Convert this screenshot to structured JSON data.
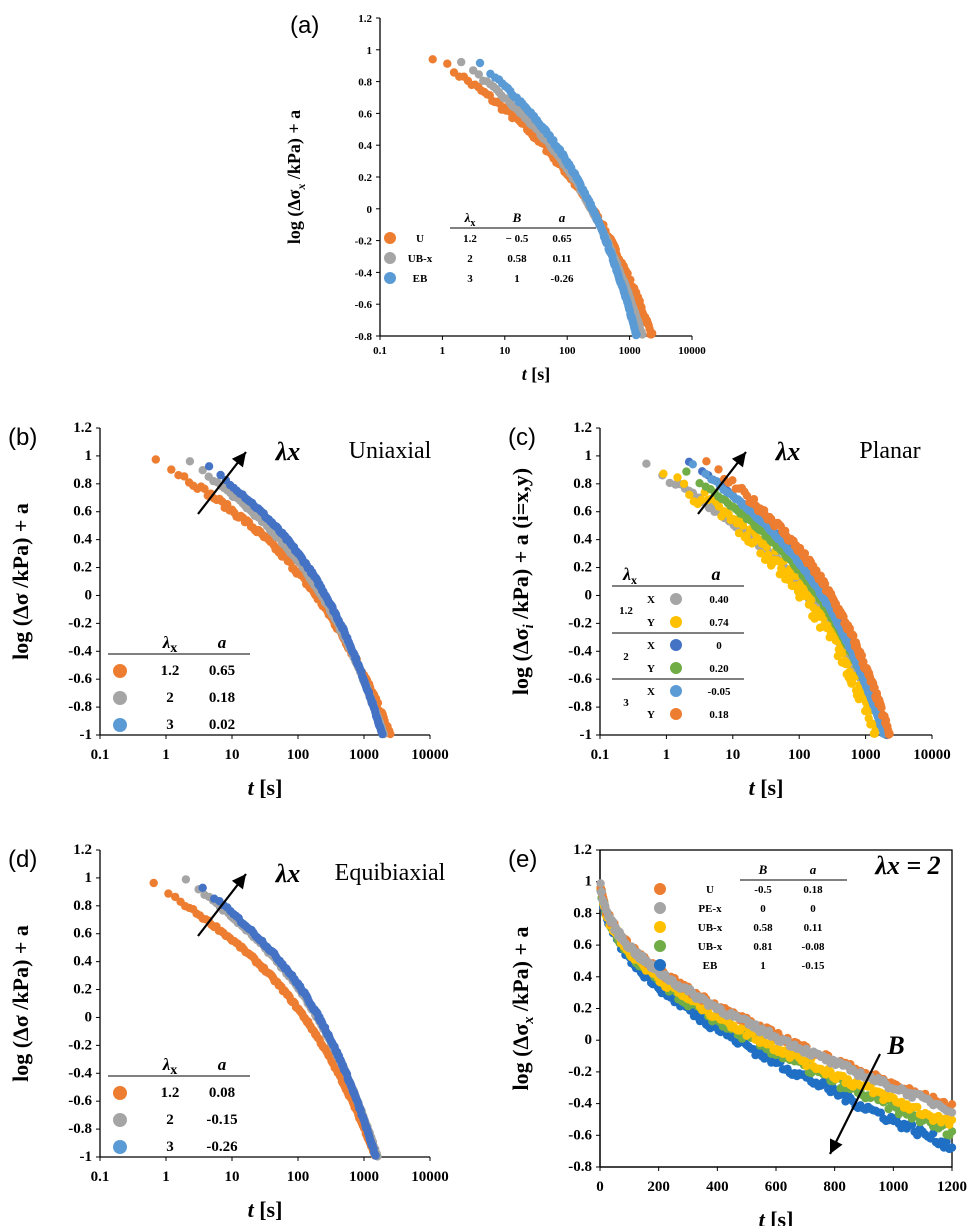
{
  "colors": {
    "orange": "#ED7D31",
    "gray": "#A5A5A5",
    "lightblue": "#5B9BD5",
    "darkblue": "#4472C4",
    "yellow": "#FFC000",
    "green": "#70AD47",
    "deepblue": "#1F6FC5"
  },
  "chart_data": [
    {
      "id": "a",
      "panel_label": "(a)",
      "type": "scatter",
      "xscale": "log",
      "xlim": [
        0.1,
        10000
      ],
      "ylim": [
        -0.8,
        1.2
      ],
      "xticks": [
        "0.1",
        "1",
        "10",
        "100",
        "1000",
        "10000"
      ],
      "yticks": [
        "-0.8",
        "-0.6",
        "-0.4",
        "-0.2",
        "0",
        "0.2",
        "0.4",
        "0.6",
        "0.8",
        "1",
        "1.2"
      ],
      "xlabel_main": "t",
      "xlabel_unit": "[s]",
      "ylabel": "log (Δσ",
      "ylabel_sub": "x",
      "ylabel_tail": " /kPa) + a",
      "legend_placement": "lower-left",
      "legend_headers": [
        "λx",
        "B",
        "a"
      ],
      "legend_rows": [
        {
          "label": "U",
          "color": "orange",
          "cols": [
            "1.2",
            "− 0.5",
            "0.65"
          ]
        },
        {
          "label": "UB-x",
          "color": "gray",
          "cols": [
            "2",
            "0.58",
            "0.11"
          ]
        },
        {
          "label": "EB",
          "color": "lightblue",
          "cols": [
            "3",
            "1",
            "-0.26"
          ]
        }
      ],
      "series": [
        {
          "name": "U",
          "color": "orange",
          "model": "log",
          "t0": 0.7,
          "y0": 0.96,
          "tend": 2300,
          "scatter": 0.02
        },
        {
          "name": "UB-x",
          "color": "gray",
          "model": "log",
          "t0": 2.0,
          "y0": 0.93,
          "tend": 1600,
          "scatter": 0.01
        },
        {
          "name": "EB",
          "color": "lightblue",
          "model": "log",
          "t0": 4.0,
          "y0": 0.92,
          "tend": 1300,
          "scatter": 0.01
        }
      ]
    },
    {
      "id": "b",
      "panel_label": "(b)",
      "type": "scatter",
      "title": "Uniaxial",
      "arrow_label": "λx",
      "xscale": "log",
      "xlim": [
        0.1,
        10000
      ],
      "ylim": [
        -1,
        1.2
      ],
      "xticks": [
        "0.1",
        "1",
        "10",
        "100",
        "1000",
        "10000"
      ],
      "yticks": [
        "-1",
        "-0.8",
        "-0.6",
        "-0.4",
        "-0.2",
        "0",
        "0.2",
        "0.4",
        "0.6",
        "0.8",
        "1",
        "1.2"
      ],
      "xlabel_main": "t",
      "xlabel_unit": "[s]",
      "ylabel": "log (Δσ",
      "ylabel_sub": "",
      "ylabel_tail": " /kPa) + a",
      "legend_placement": "lower-left",
      "legend_headers": [
        "λx",
        "a"
      ],
      "legend_rows": [
        {
          "label": "",
          "color": "orange",
          "cols": [
            "1.2",
            "0.65"
          ]
        },
        {
          "label": "",
          "color": "gray",
          "cols": [
            "2",
            "0.18"
          ]
        },
        {
          "label": "",
          "color": "lightblue",
          "cols": [
            "3",
            "0.02"
          ]
        }
      ],
      "series": [
        {
          "name": "1.2",
          "color": "orange",
          "model": "log",
          "t0": 0.7,
          "y0": 0.98,
          "tend": 2500,
          "scatter": 0.02
        },
        {
          "name": "2",
          "color": "gray",
          "model": "log",
          "t0": 2.3,
          "y0": 0.96,
          "tend": 2000,
          "scatter": 0.01
        },
        {
          "name": "3",
          "color": "darkblue",
          "model": "log",
          "t0": 4.5,
          "y0": 0.93,
          "tend": 1900,
          "scatter": 0.01
        }
      ]
    },
    {
      "id": "c",
      "panel_label": "(c)",
      "type": "scatter",
      "title": "Planar",
      "arrow_label": "λx",
      "xscale": "log",
      "xlim": [
        0.1,
        10000
      ],
      "ylim": [
        -1,
        1.2
      ],
      "xticks": [
        "0.1",
        "1",
        "10",
        "100",
        "1000",
        "10000"
      ],
      "yticks": [
        "-1",
        "-0.8",
        "-0.6",
        "-0.4",
        "-0.2",
        "0",
        "0.2",
        "0.4",
        "0.6",
        "0.8",
        "1",
        "1.2"
      ],
      "xlabel_main": "t",
      "xlabel_unit": "[s]",
      "ylabel": "log (Δσ",
      "ylabel_sub": "i",
      "ylabel_tail": " /kPa) + a  (i=x,y)",
      "legend_placement": "lower-left",
      "legend_headers": [
        "λx",
        "a"
      ],
      "legend_rows": [
        {
          "group": "1.2",
          "label": "X",
          "color": "gray",
          "cols": [
            "0.40"
          ]
        },
        {
          "group": "",
          "label": "Y",
          "color": "yellow",
          "cols": [
            "0.74"
          ]
        },
        {
          "group": "2",
          "label": "X",
          "color": "darkblue",
          "cols": [
            "0"
          ]
        },
        {
          "group": "",
          "label": "Y",
          "color": "green",
          "cols": [
            "0.20"
          ]
        },
        {
          "group": "3",
          "label": "X",
          "color": "lightblue",
          "cols": [
            "-0.05"
          ]
        },
        {
          "group": "",
          "label": "Y",
          "color": "orange",
          "cols": [
            "0.18"
          ]
        }
      ],
      "series": [
        {
          "name": "1.2 X",
          "color": "gray",
          "model": "log",
          "t0": 0.5,
          "y0": 0.93,
          "tend": 2100,
          "scatter": 0.02
        },
        {
          "name": "1.2 Y",
          "color": "yellow",
          "model": "log",
          "t0": 0.9,
          "y0": 0.88,
          "tend": 1500,
          "scatter": 0.07
        },
        {
          "name": "2 X",
          "color": "darkblue",
          "model": "log",
          "t0": 2.2,
          "y0": 0.96,
          "tend": 2100,
          "scatter": 0.01
        },
        {
          "name": "2 Y",
          "color": "green",
          "model": "log",
          "t0": 2.0,
          "y0": 0.88,
          "tend": 2000,
          "scatter": 0.01
        },
        {
          "name": "3 X",
          "color": "lightblue",
          "model": "log",
          "t0": 2.5,
          "y0": 0.94,
          "tend": 1900,
          "scatter": 0.01
        },
        {
          "name": "3 Y",
          "color": "orange",
          "model": "log",
          "t0": 4.0,
          "y0": 0.95,
          "tend": 2300,
          "scatter": 0.03
        }
      ]
    },
    {
      "id": "d",
      "panel_label": "(d)",
      "type": "scatter",
      "title": "Equibiaxial",
      "arrow_label": "λx",
      "xscale": "log",
      "xlim": [
        0.1,
        10000
      ],
      "ylim": [
        -1,
        1.2
      ],
      "xticks": [
        "0.1",
        "1",
        "10",
        "100",
        "1000",
        "10000"
      ],
      "yticks": [
        "-1",
        "-0.8",
        "-0.6",
        "-0.4",
        "-0.2",
        "0",
        "0.2",
        "0.4",
        "0.6",
        "0.8",
        "1",
        "1.2"
      ],
      "xlabel_main": "t",
      "xlabel_unit": "[s]",
      "ylabel": "log (Δσ",
      "ylabel_sub": "",
      "ylabel_tail": " /kPa) + a",
      "legend_placement": "lower-left",
      "legend_headers": [
        "λx",
        "a"
      ],
      "legend_rows": [
        {
          "label": "",
          "color": "orange",
          "cols": [
            "1.2",
            "0.08"
          ]
        },
        {
          "label": "",
          "color": "gray",
          "cols": [
            "2",
            "-0.15"
          ]
        },
        {
          "label": "",
          "color": "lightblue",
          "cols": [
            "3",
            "-0.26"
          ]
        }
      ],
      "series": [
        {
          "name": "1.2",
          "color": "orange",
          "model": "log",
          "t0": 0.65,
          "y0": 0.96,
          "tend": 1500,
          "scatter": 0.01
        },
        {
          "name": "2",
          "color": "gray",
          "model": "log",
          "t0": 2.0,
          "y0": 0.99,
          "tend": 1600,
          "scatter": 0.01
        },
        {
          "name": "3",
          "color": "darkblue",
          "model": "log",
          "t0": 3.6,
          "y0": 0.93,
          "tend": 1500,
          "scatter": 0.01
        }
      ]
    },
    {
      "id": "e",
      "panel_label": "(e)",
      "type": "scatter",
      "title": "λx = 2",
      "arrow_label": "B",
      "xscale": "linear",
      "xlim": [
        0,
        1200
      ],
      "ylim": [
        -0.8,
        1.2
      ],
      "xticks": [
        "0",
        "200",
        "400",
        "600",
        "800",
        "1000",
        "1200"
      ],
      "yticks": [
        "-0.8",
        "-0.6",
        "-0.4",
        "-0.2",
        "0",
        "0.2",
        "0.4",
        "0.6",
        "0.8",
        "1",
        "1.2"
      ],
      "xlabel_main": "t",
      "xlabel_unit": "[s]",
      "ylabel": "log (Δσ",
      "ylabel_sub": "x",
      "ylabel_tail": " /kPa) + a",
      "legend_placement": "top-center",
      "legend_headers": [
        "B",
        "a"
      ],
      "legend_rows": [
        {
          "label": "U",
          "color": "orange",
          "cols": [
            "-0.5",
            "0.18"
          ]
        },
        {
          "label": "PE-x",
          "color": "gray",
          "cols": [
            "0",
            "0"
          ]
        },
        {
          "label": "UB-x",
          "color": "yellow",
          "cols": [
            "0.58",
            "0.11"
          ]
        },
        {
          "label": "UB-x",
          "color": "green",
          "cols": [
            "0.81",
            "-0.08"
          ]
        },
        {
          "label": "EB",
          "color": "deepblue",
          "cols": [
            "1",
            "-0.15"
          ]
        }
      ],
      "series": [
        {
          "name": "EB",
          "color": "deepblue",
          "model": "lin",
          "yend": -0.67,
          "scatter": 0.03
        },
        {
          "name": "UB-x 0.81",
          "color": "green",
          "model": "lin",
          "yend": -0.58,
          "scatter": 0.03
        },
        {
          "name": "UB-x 0.58",
          "color": "yellow",
          "model": "lin",
          "yend": -0.53,
          "scatter": 0.03
        },
        {
          "name": "U",
          "color": "orange",
          "model": "lin",
          "yend": -0.42,
          "scatter": 0.02
        },
        {
          "name": "PE-x",
          "color": "gray",
          "model": "lin",
          "yend": -0.44,
          "scatter": 0.02
        }
      ]
    }
  ]
}
